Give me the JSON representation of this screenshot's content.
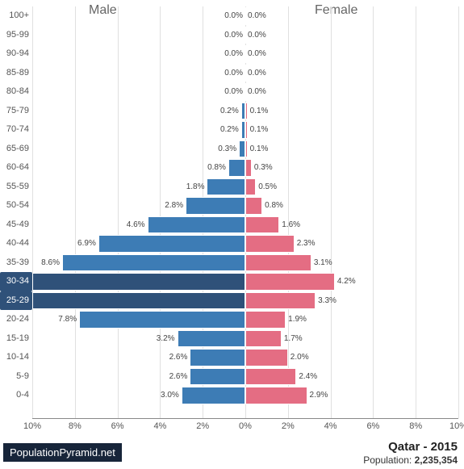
{
  "chart": {
    "type": "population-pyramid",
    "male_label": "Male",
    "female_label": "Female",
    "male_color": "#3d7cb5",
    "female_color": "#e46d83",
    "male_highlight_color": "#2f5179",
    "female_highlight_color": "#c94b63",
    "background_color": "#ffffff",
    "grid_color": "#e0e0e0",
    "axis_max_percent": 10,
    "axis_tick_step": 2,
    "header_fontsize": 16,
    "label_fontsize": 11,
    "barlabel_fontsize": 10,
    "rows": [
      {
        "age": "100+",
        "male": 0.0,
        "female": 0.0,
        "male_full": false,
        "female_full": false
      },
      {
        "age": "95-99",
        "male": 0.0,
        "female": 0.0,
        "male_full": false,
        "female_full": false
      },
      {
        "age": "90-94",
        "male": 0.0,
        "female": 0.0,
        "male_full": false,
        "female_full": false
      },
      {
        "age": "85-89",
        "male": 0.0,
        "female": 0.0,
        "male_full": false,
        "female_full": false
      },
      {
        "age": "80-84",
        "male": 0.0,
        "female": 0.0,
        "male_full": false,
        "female_full": false
      },
      {
        "age": "75-79",
        "male": 0.2,
        "female": 0.1,
        "male_full": false,
        "female_full": false
      },
      {
        "age": "70-74",
        "male": 0.2,
        "female": 0.1,
        "male_full": false,
        "female_full": false
      },
      {
        "age": "65-69",
        "male": 0.3,
        "female": 0.1,
        "male_full": false,
        "female_full": false
      },
      {
        "age": "60-64",
        "male": 0.8,
        "female": 0.3,
        "male_full": false,
        "female_full": false
      },
      {
        "age": "55-59",
        "male": 1.8,
        "female": 0.5,
        "male_full": false,
        "female_full": false
      },
      {
        "age": "50-54",
        "male": 2.8,
        "female": 0.8,
        "male_full": false,
        "female_full": false
      },
      {
        "age": "45-49",
        "male": 4.6,
        "female": 1.6,
        "male_full": false,
        "female_full": false
      },
      {
        "age": "40-44",
        "male": 6.9,
        "female": 2.3,
        "male_full": false,
        "female_full": false
      },
      {
        "age": "35-39",
        "male": 8.6,
        "female": 3.1,
        "male_full": false,
        "female_full": false
      },
      {
        "age": "30-34",
        "male": 10.0,
        "female": 4.2,
        "male_full": true,
        "female_full": false,
        "highlight": true
      },
      {
        "age": "25-29",
        "male": 10.0,
        "female": 3.3,
        "male_full": true,
        "female_full": false,
        "highlight": true
      },
      {
        "age": "20-24",
        "male": 7.8,
        "female": 1.9,
        "male_full": false,
        "female_full": false
      },
      {
        "age": "15-19",
        "male": 3.2,
        "female": 1.7,
        "male_full": false,
        "female_full": false
      },
      {
        "age": "10-14",
        "male": 2.6,
        "female": 2.0,
        "male_full": false,
        "female_full": false
      },
      {
        "age": "5-9",
        "male": 2.6,
        "female": 2.4,
        "male_full": false,
        "female_full": false
      },
      {
        "age": "0-4",
        "male": 3.0,
        "female": 2.9,
        "male_full": false,
        "female_full": false
      }
    ],
    "x_ticks_male": [
      "10%",
      "8%",
      "6%",
      "4%",
      "2%",
      "0%"
    ],
    "x_ticks_female": [
      "0%",
      "2%",
      "4%",
      "6%",
      "8%",
      "10%"
    ]
  },
  "footer": {
    "site": "PopulationPyramid.net",
    "country_year": "Qatar - 2015",
    "population_label": "Population: ",
    "population_value": "2,235,354"
  }
}
